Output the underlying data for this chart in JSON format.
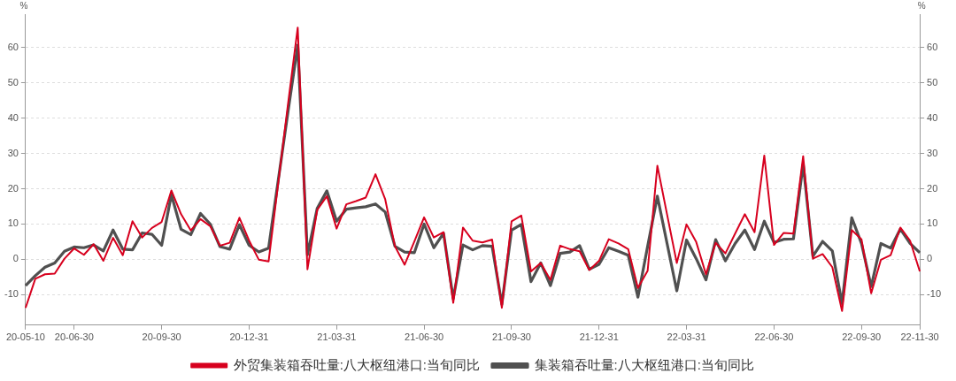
{
  "chart_data": {
    "type": "line",
    "ylabel": "%",
    "y2label": "%",
    "categories": [
      "20-05-10",
      null,
      null,
      null,
      null,
      "20-06-30",
      null,
      null,
      null,
      null,
      null,
      null,
      null,
      null,
      "20-09-30",
      null,
      null,
      null,
      null,
      null,
      null,
      null,
      null,
      "20-12-31",
      null,
      null,
      null,
      null,
      null,
      null,
      null,
      null,
      "21-03-31",
      null,
      null,
      null,
      null,
      null,
      null,
      null,
      null,
      "21-06-30",
      null,
      null,
      null,
      null,
      null,
      null,
      null,
      null,
      "21-09-30",
      null,
      null,
      null,
      null,
      null,
      null,
      null,
      null,
      "21-12-31",
      null,
      null,
      null,
      null,
      null,
      null,
      null,
      null,
      "22-03-31",
      null,
      null,
      null,
      null,
      null,
      null,
      null,
      null,
      "22-06-30",
      null,
      null,
      null,
      null,
      null,
      null,
      null,
      null,
      "22-09-30",
      null,
      null,
      null,
      null,
      null,
      "22-11-30"
    ],
    "series": [
      {
        "name": "外贸集装箱吞吐量:八大枢纽港口:当旬同比",
        "color": "#d7001e",
        "values": [
          -13.7,
          -5.5,
          -4.2,
          -4.0,
          0.2,
          3.1,
          1.3,
          4.3,
          -0.4,
          6.1,
          1.2,
          10.8,
          6.2,
          8.9,
          10.6,
          19.5,
          12.8,
          8.2,
          11.4,
          9.4,
          3.9,
          4.7,
          11.8,
          5.3,
          -0.1,
          -0.6,
          21.7,
          44.0,
          65.6,
          -2.8,
          14.0,
          17.9,
          8.7,
          15.6,
          16.5,
          17.5,
          24.1,
          17.0,
          3.7,
          -1.5,
          5.1,
          11.9,
          6.2,
          7.7,
          -12.3,
          9.0,
          5.3,
          4.8,
          5.6,
          -13.7,
          10.8,
          12.4,
          -3.4,
          -1.0,
          -5.8,
          3.9,
          2.9,
          2.3,
          -3.0,
          -0.4,
          5.7,
          4.5,
          2.9,
          -8.1,
          -3.2,
          26.5,
          12.7,
          -1.0,
          9.9,
          4.9,
          -4.2,
          4.7,
          1.7,
          7.3,
          12.8,
          7.7,
          29.4,
          4.1,
          7.5,
          7.3,
          29.2,
          0.2,
          1.5,
          -2.2,
          -14.6,
          8.3,
          5.7,
          -9.6,
          -0.1,
          1.2,
          9.0,
          5.3,
          -3.4
        ]
      },
      {
        "name": "集装箱吞吐量:八大枢纽港口:当旬同比",
        "color": "#505050",
        "values": [
          -7.4,
          -4.6,
          -2.2,
          -1.0,
          2.3,
          3.5,
          3.3,
          4.1,
          2.4,
          8.3,
          2.9,
          2.7,
          7.5,
          7.1,
          4.0,
          18.3,
          8.5,
          7.0,
          13.0,
          10.0,
          3.6,
          2.9,
          9.8,
          4.0,
          2.1,
          3.2,
          22.5,
          41.8,
          60.6,
          1.3,
          14.4,
          19.4,
          10.8,
          14.2,
          14.6,
          14.9,
          15.7,
          13.4,
          3.7,
          2.1,
          1.9,
          10.0,
          3.3,
          7.4,
          -11.1,
          4.1,
          2.7,
          3.9,
          3.7,
          -12.7,
          8.3,
          9.9,
          -6.3,
          -1.0,
          -7.4,
          1.7,
          2.1,
          3.9,
          -2.8,
          -1.4,
          3.3,
          2.3,
          1.2,
          -10.7,
          3.7,
          17.9,
          4.5,
          -8.9,
          5.5,
          0.2,
          -5.8,
          5.6,
          -0.4,
          4.5,
          8.3,
          2.8,
          10.8,
          4.8,
          5.7,
          5.8,
          27.0,
          0.9,
          5.1,
          2.4,
          -12.5,
          11.8,
          4.5,
          -7.7,
          4.5,
          3.2,
          8.6,
          4.5,
          1.9
        ]
      }
    ],
    "ylim": [
      -18.6,
      69.4
    ],
    "yticks": [
      -10,
      0,
      10,
      20,
      30,
      40,
      50,
      60
    ],
    "y2lim": [
      -18.6,
      69.4
    ],
    "y2ticks": [
      -10,
      0,
      10,
      20,
      30,
      40,
      50,
      60
    ],
    "grid": "y",
    "legend": "bottom",
    "line_style": "solid"
  }
}
